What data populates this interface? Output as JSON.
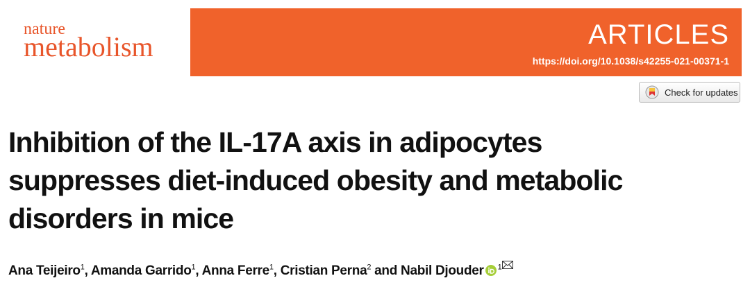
{
  "header": {
    "journal_line1": "nature",
    "journal_line2": "metabolism",
    "section": "ARTICLES",
    "doi": "https://doi.org/10.1038/s42255-021-00371-1"
  },
  "check_updates": "Check for updates",
  "title_lines": [
    "Inhibition of the IL-17A axis in adipocytes",
    "suppresses diet-induced obesity and metabolic",
    "disorders in mice"
  ],
  "authors": [
    {
      "name": "Ana Teijeiro",
      "affiliation": "1"
    },
    {
      "name": "Amanda Garrido",
      "affiliation": "1"
    },
    {
      "name": "Anna Ferre",
      "affiliation": "1"
    },
    {
      "name": "Cristian Perna",
      "affiliation": "2"
    },
    {
      "name": "Nabil Djouder",
      "affiliation": "1"
    }
  ],
  "author_separators": [
    ", ",
    ", ",
    ", ",
    " and "
  ]
}
